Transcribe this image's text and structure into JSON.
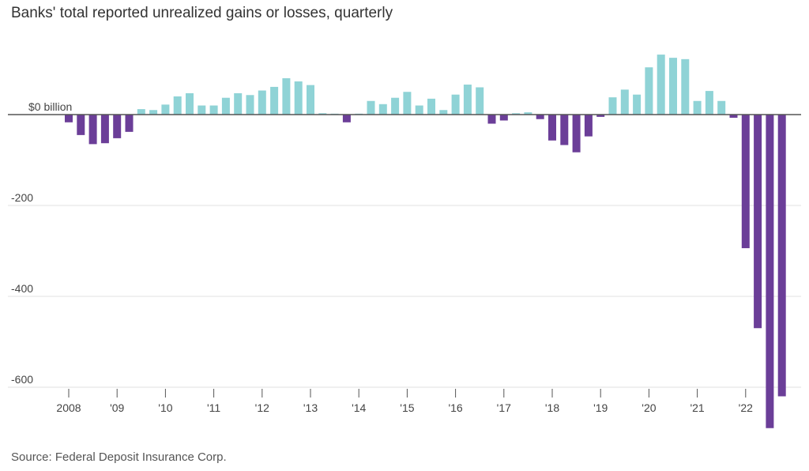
{
  "chart_data": {
    "type": "bar",
    "title": "Banks' total reported unrealized gains or losses, quarterly",
    "source": "Source: Federal Deposit Insurance Corp.",
    "xlabel": "",
    "ylabel": "",
    "ylim": [
      -700,
      140
    ],
    "grid": true,
    "colors": {
      "positive": "#8fd3d6",
      "negative": "#6b3e98",
      "grid": "#e2e2e2",
      "zero_line": "#555555"
    },
    "y_ticks": [
      {
        "value": 0,
        "label": "$0 billion"
      },
      {
        "value": -200,
        "label": "-200"
      },
      {
        "value": -400,
        "label": "-400"
      },
      {
        "value": -600,
        "label": "-600"
      }
    ],
    "x_tick_labels": [
      "2008",
      "'09",
      "'10",
      "'11",
      "'12",
      "'13",
      "'14",
      "'15",
      "'16",
      "'17",
      "'18",
      "'19",
      "'20",
      "'21",
      "'22"
    ],
    "categories": [
      "2008 Q1",
      "2008 Q2",
      "2008 Q3",
      "2008 Q4",
      "2009 Q1",
      "2009 Q2",
      "2009 Q3",
      "2009 Q4",
      "2010 Q1",
      "2010 Q2",
      "2010 Q3",
      "2010 Q4",
      "2011 Q1",
      "2011 Q2",
      "2011 Q3",
      "2011 Q4",
      "2012 Q1",
      "2012 Q2",
      "2012 Q3",
      "2012 Q4",
      "2013 Q1",
      "2013 Q2",
      "2013 Q3",
      "2013 Q4",
      "2014 Q1",
      "2014 Q2",
      "2014 Q3",
      "2014 Q4",
      "2015 Q1",
      "2015 Q2",
      "2015 Q3",
      "2015 Q4",
      "2016 Q1",
      "2016 Q2",
      "2016 Q3",
      "2016 Q4",
      "2017 Q1",
      "2017 Q2",
      "2017 Q3",
      "2017 Q4",
      "2018 Q1",
      "2018 Q2",
      "2018 Q3",
      "2018 Q4",
      "2019 Q1",
      "2019 Q2",
      "2019 Q3",
      "2019 Q4",
      "2020 Q1",
      "2020 Q2",
      "2020 Q3",
      "2020 Q4",
      "2021 Q1",
      "2021 Q2",
      "2021 Q3",
      "2021 Q4",
      "2022 Q1",
      "2022 Q2",
      "2022 Q3",
      "2022 Q4"
    ],
    "values": [
      -17,
      -45,
      -65,
      -63,
      -52,
      -38,
      12,
      10,
      22,
      40,
      47,
      20,
      20,
      37,
      47,
      43,
      53,
      61,
      80,
      73,
      65,
      3,
      2,
      -17,
      2,
      30,
      23,
      37,
      50,
      20,
      35,
      10,
      44,
      66,
      60,
      -20,
      -13,
      3,
      5,
      -10,
      -57,
      -67,
      -83,
      -48,
      -5,
      38,
      55,
      44,
      104,
      132,
      125,
      122,
      30,
      52,
      30,
      -7,
      -294,
      -470,
      -690,
      -620
    ]
  }
}
